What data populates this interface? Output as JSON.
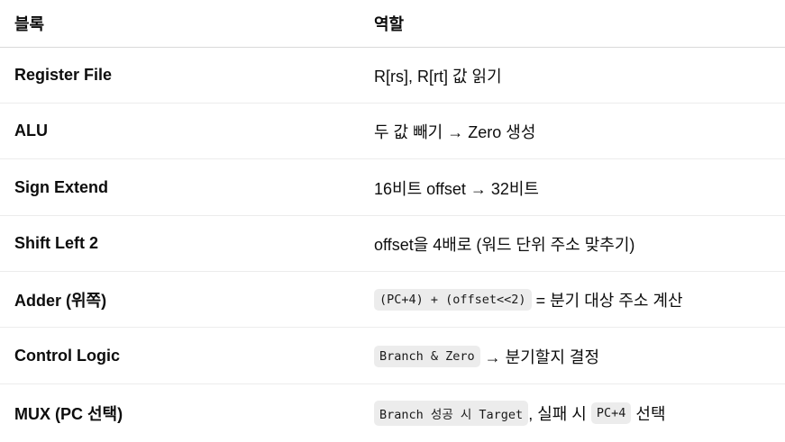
{
  "table": {
    "headers": [
      "블록",
      "역할"
    ],
    "rows": [
      {
        "block": "Register File",
        "role": [
          {
            "t": "text",
            "v": "R[rs], R[rt] 값 읽기"
          }
        ]
      },
      {
        "block": "ALU",
        "role": [
          {
            "t": "text",
            "v": "두 값 빼기 → Zero 생성"
          }
        ]
      },
      {
        "block": "Sign Extend",
        "role": [
          {
            "t": "text",
            "v": "16비트 offset → 32비트"
          }
        ]
      },
      {
        "block": "Shift Left 2",
        "role": [
          {
            "t": "text",
            "v": "offset을 4배로 (워드 단위 주소 맞추기)"
          }
        ]
      },
      {
        "block": "Adder (위쪽)",
        "role": [
          {
            "t": "code",
            "v": "(PC+4) + (offset<<2)"
          },
          {
            "t": "text",
            "v": " = 분기 대상 주소 계산"
          }
        ]
      },
      {
        "block": "Control Logic",
        "role": [
          {
            "t": "code",
            "v": "Branch & Zero"
          },
          {
            "t": "text",
            "v": " → 분기할지 결정"
          }
        ]
      },
      {
        "block": "MUX (PC 선택)",
        "role": [
          {
            "t": "code",
            "v": "Branch 성공 시 Target"
          },
          {
            "t": "text",
            "v": ", 실패 시 "
          },
          {
            "t": "code",
            "v": "PC+4"
          },
          {
            "t": "text",
            "v": " 선택"
          }
        ]
      }
    ]
  }
}
